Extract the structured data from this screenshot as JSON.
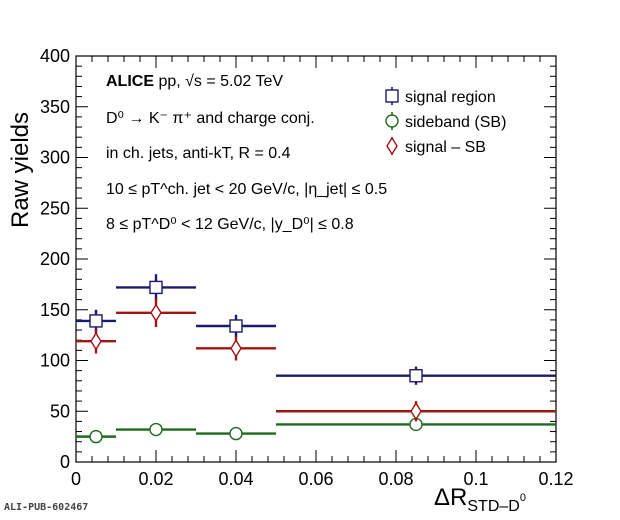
{
  "chart_data": {
    "type": "scatter",
    "xlabel": "ΔR",
    "xlabel_sub": "STD–D",
    "xlabel_sup": "0",
    "ylabel": "Raw yields",
    "xlim": [
      0,
      0.12
    ],
    "ylim": [
      0,
      400
    ],
    "x_ticks": [
      0,
      0.02,
      0.04,
      0.06,
      0.08,
      0.1,
      0.12
    ],
    "x_tick_labels": [
      "0",
      "0.02",
      "0.04",
      "0.06",
      "0.08",
      "0.1",
      "0.12"
    ],
    "y_ticks": [
      0,
      50,
      100,
      150,
      200,
      250,
      300,
      350,
      400
    ],
    "y_tick_labels": [
      "0",
      "50",
      "100",
      "150",
      "200",
      "250",
      "300",
      "350",
      "400"
    ],
    "legend_position": "top-right",
    "series": [
      {
        "name": "signal region",
        "color": "#1a1a6e",
        "marker": "open-square",
        "points": [
          {
            "x": 0.005,
            "xlo": 0.0,
            "xhi": 0.01,
            "y": 139,
            "err": 11
          },
          {
            "x": 0.02,
            "xlo": 0.01,
            "xhi": 0.03,
            "y": 172,
            "err": 13
          },
          {
            "x": 0.04,
            "xlo": 0.03,
            "xhi": 0.05,
            "y": 134,
            "err": 11
          },
          {
            "x": 0.085,
            "xlo": 0.05,
            "xhi": 0.12,
            "y": 85,
            "err": 9
          }
        ]
      },
      {
        "name": "sideband (SB)",
        "color": "#1e6b1e",
        "marker": "open-circle",
        "points": [
          {
            "x": 0.005,
            "xlo": 0.0,
            "xhi": 0.01,
            "y": 25,
            "err": 3
          },
          {
            "x": 0.02,
            "xlo": 0.01,
            "xhi": 0.03,
            "y": 32,
            "err": 3
          },
          {
            "x": 0.04,
            "xlo": 0.03,
            "xhi": 0.05,
            "y": 28,
            "err": 3
          },
          {
            "x": 0.085,
            "xlo": 0.05,
            "xhi": 0.12,
            "y": 37,
            "err": 3
          }
        ]
      },
      {
        "name": "signal – SB",
        "color": "#a01414",
        "marker": "open-diamond",
        "points": [
          {
            "x": 0.005,
            "xlo": 0.0,
            "xhi": 0.01,
            "y": 119,
            "err": 12
          },
          {
            "x": 0.02,
            "xlo": 0.01,
            "xhi": 0.03,
            "y": 147,
            "err": 14
          },
          {
            "x": 0.04,
            "xlo": 0.03,
            "xhi": 0.05,
            "y": 112,
            "err": 12
          },
          {
            "x": 0.085,
            "xlo": 0.05,
            "xhi": 0.12,
            "y": 50,
            "err": 10
          }
        ]
      }
    ],
    "annotations": {
      "line1_bold": "ALICE",
      "line1_rest": " pp, √s = 5.02 TeV",
      "line2": "D⁰ → K⁻ π⁺ and charge conj.",
      "line3": "in ch. jets, anti-kT, R = 0.4",
      "line4": "10 ≤ pT^ch. jet < 20 GeV/c, |η_jet| ≤ 0.5",
      "line5": "8 ≤ pT^D⁰ < 12 GeV/c, |y_D⁰| ≤ 0.8"
    }
  },
  "footer": {
    "pub_id": "ALI-PUB-602467"
  }
}
